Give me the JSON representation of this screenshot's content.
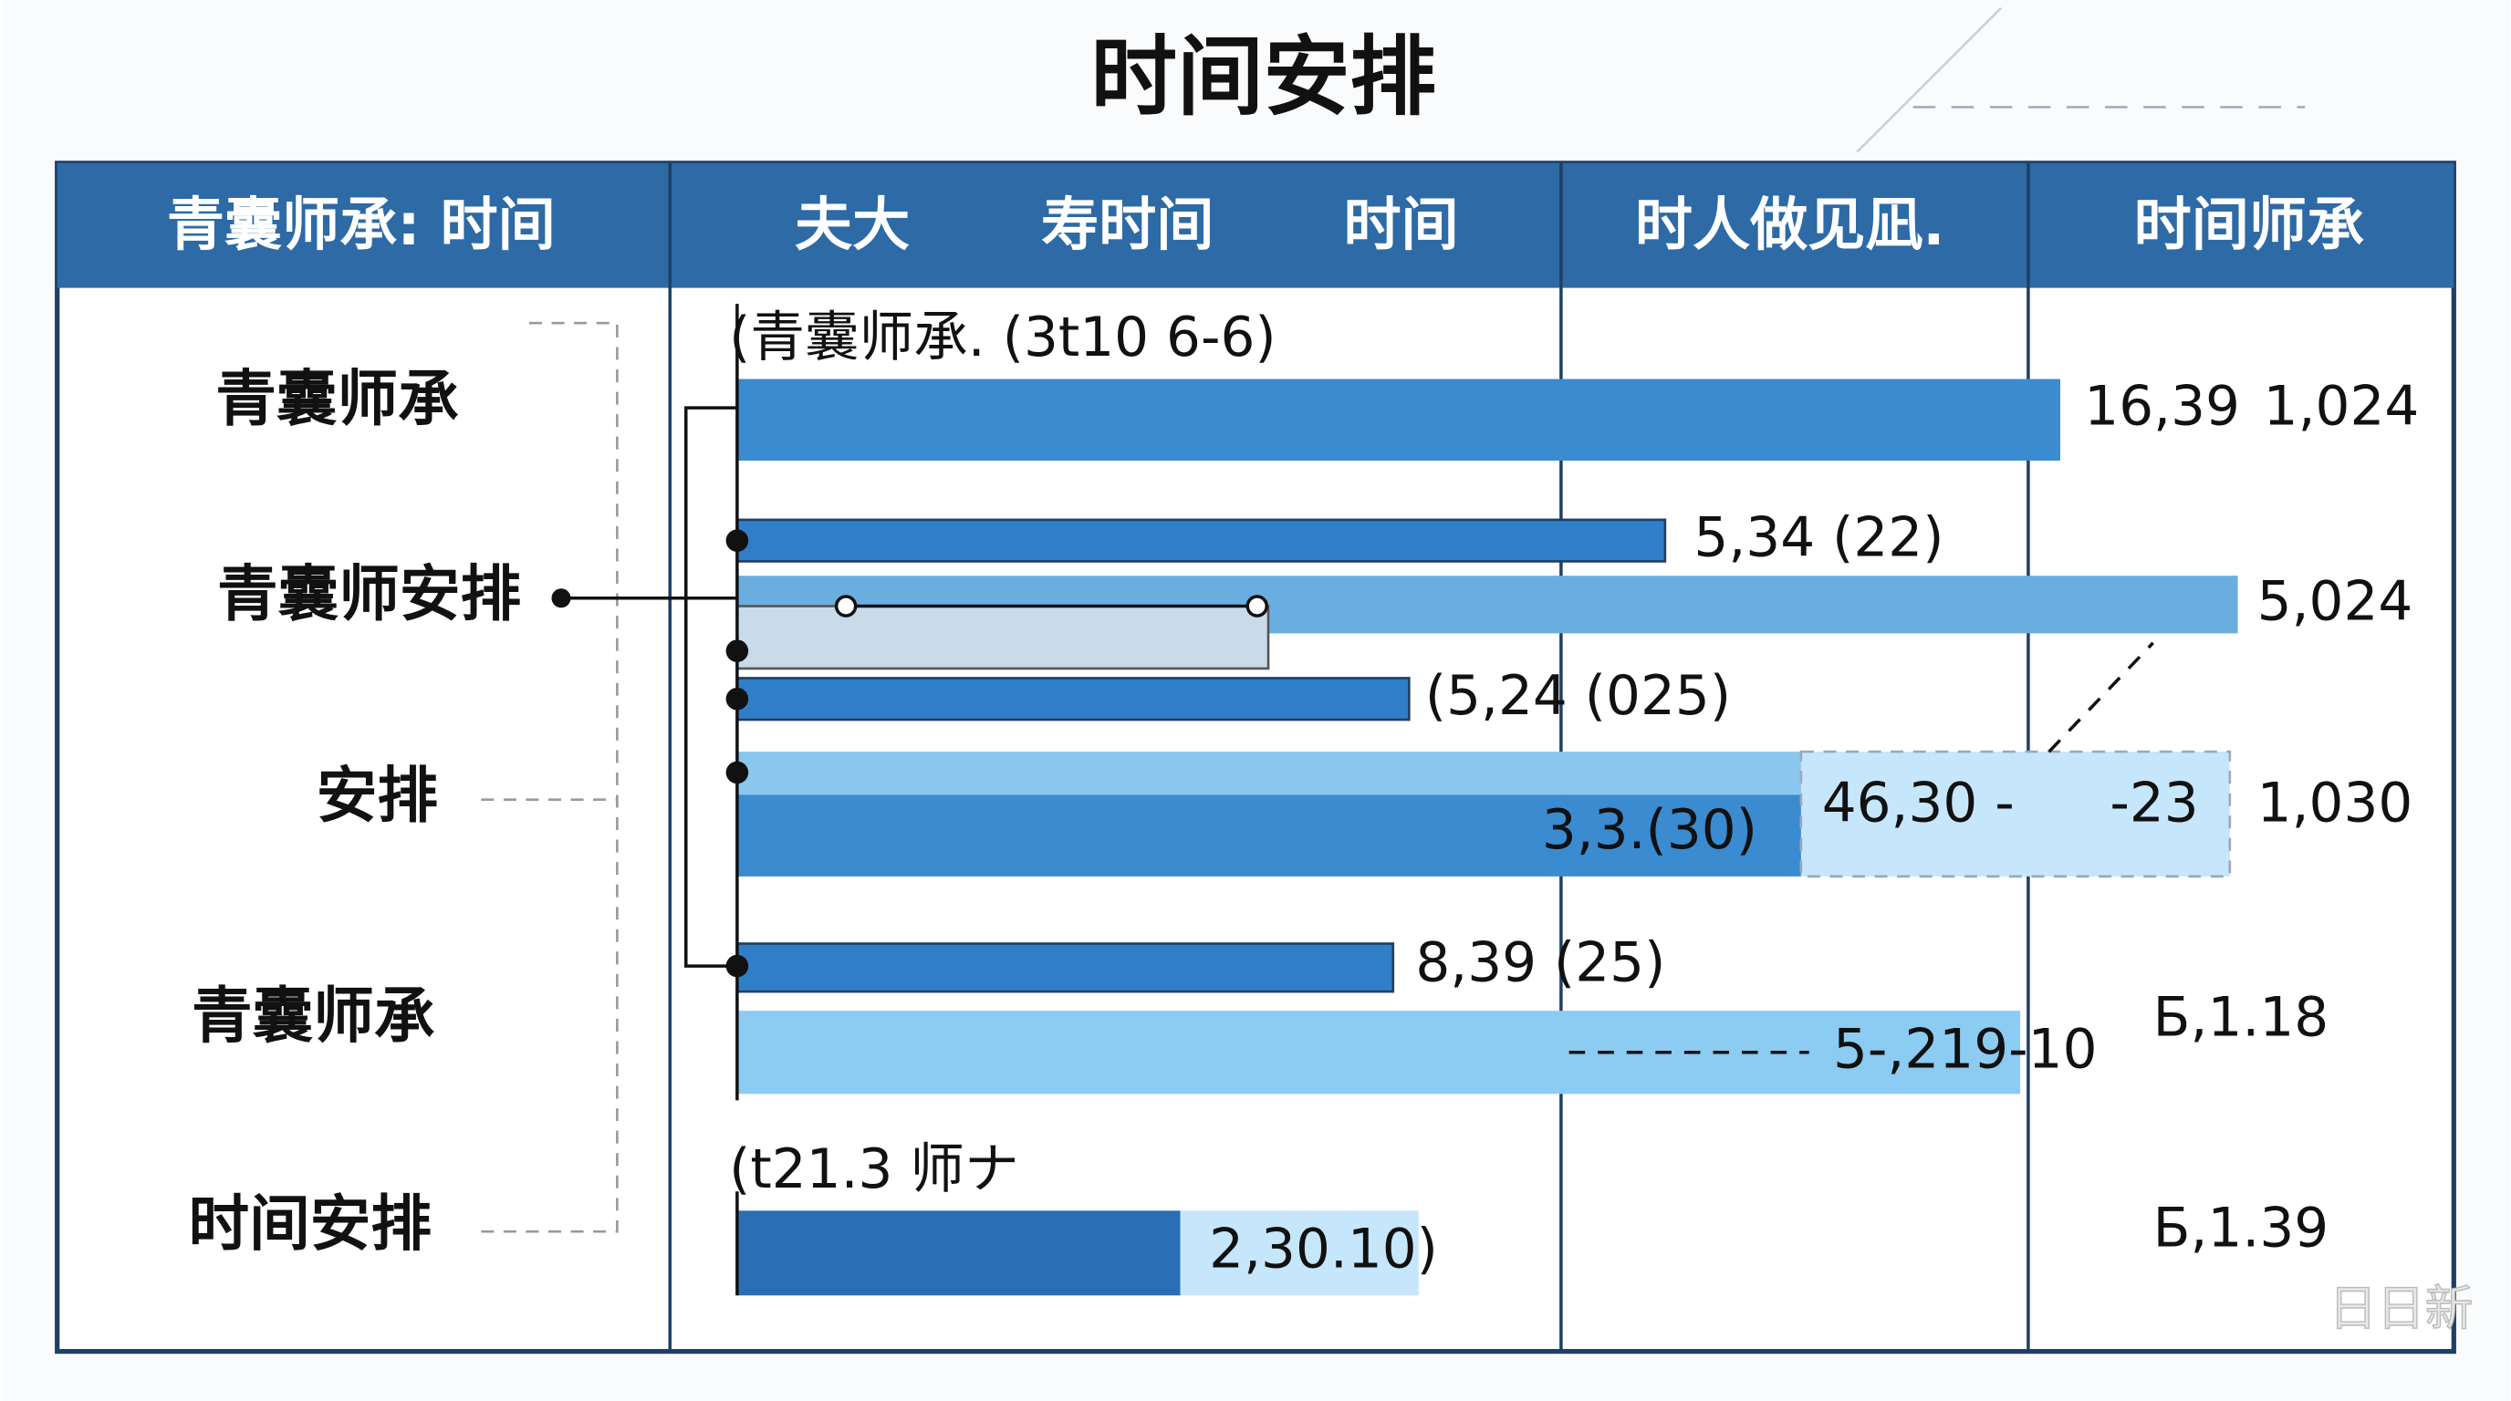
{
  "title": "时间安排",
  "header": [
    "青囊师承: 时间",
    "夫大",
    "寿时间",
    "时间",
    "时人做见凪.",
    "时间师承"
  ],
  "rows": [
    "青囊师承",
    "青囊师安排",
    "安排",
    "青囊师承",
    "时间安排"
  ],
  "annotations": [
    "(青囊师承. (3t10 6-6)",
    "16,39",
    "1,024",
    "5,34 (22)",
    "5,024",
    "(5,24 (025)",
    "46,30 -",
    "-23",
    "1,030",
    "3,3.(30)",
    "8,39 (25)",
    "5-,219-10",
    "Ƃ,1.18",
    "(t21.3 师ナ",
    "2,30.10)",
    "Ƃ,1.39"
  ],
  "watermark": "日日新"
}
